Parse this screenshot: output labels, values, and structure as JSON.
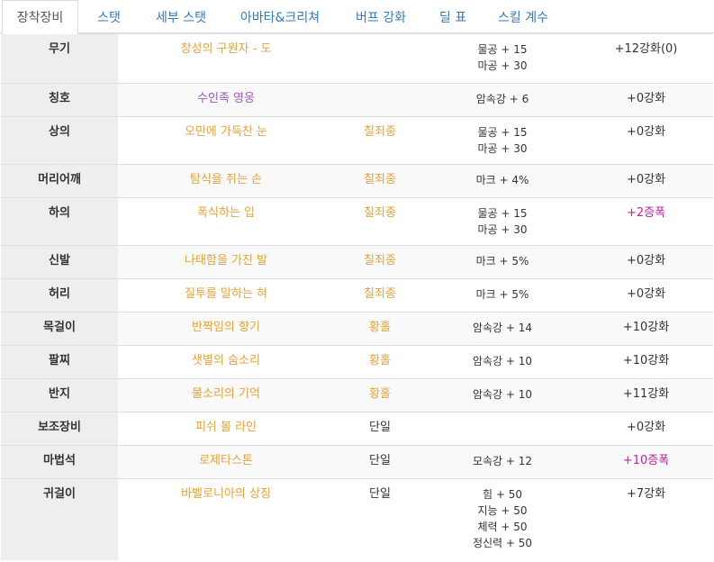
{
  "tabs": [
    {
      "label": "장착장비",
      "active": true
    },
    {
      "label": "스탯",
      "active": false
    },
    {
      "label": "세부 스탯",
      "active": false
    },
    {
      "label": "아바타&크리쳐",
      "active": false
    },
    {
      "label": "버프 강화",
      "active": false
    },
    {
      "label": "딜 표",
      "active": false
    },
    {
      "label": "스킬 계수",
      "active": false
    }
  ],
  "rows": [
    {
      "slot": "무기",
      "name": "창성의 구원자 - 도",
      "set": "",
      "stats": [
        "물공 + 15",
        "마공 + 30"
      ],
      "enh": "+12강화(0)"
    },
    {
      "slot": "칭호",
      "name": "수인족 영웅",
      "set": "",
      "stats": [
        "암속강 + 6"
      ],
      "enh": "+0강화"
    },
    {
      "slot": "상의",
      "name": "오만에 가득찬 눈",
      "set": "칠죄종",
      "stats": [
        "물공 + 15",
        "마공 + 30"
      ],
      "enh": "+0강화"
    },
    {
      "slot": "머리어깨",
      "name": "탐식을 쥐는 손",
      "set": "칠죄종",
      "stats": [
        "마크 + 4%"
      ],
      "enh": "+0강화"
    },
    {
      "slot": "하의",
      "name": "폭식하는 입",
      "set": "칠죄종",
      "stats": [
        "물공 + 15",
        "마공 + 30"
      ],
      "enh": "+2증폭"
    },
    {
      "slot": "신발",
      "name": "나태함을 가진 발",
      "set": "칠죄종",
      "stats": [
        "마크 + 5%"
      ],
      "enh": "+0강화"
    },
    {
      "slot": "허리",
      "name": "질투를 말하는 혀",
      "set": "칠죄종",
      "stats": [
        "마크 + 5%"
      ],
      "enh": "+0강화"
    },
    {
      "slot": "목걸이",
      "name": "반짝임의 향기",
      "set": "황홀",
      "stats": [
        "암속강 + 14"
      ],
      "enh": "+10강화"
    },
    {
      "slot": "팔찌",
      "name": "샛별의 숨소리",
      "set": "황홀",
      "stats": [
        "암속강 + 10"
      ],
      "enh": "+10강화"
    },
    {
      "slot": "반지",
      "name": "물소리의 기억",
      "set": "황홀",
      "stats": [
        "암속강 + 10"
      ],
      "enh": "+11강화"
    },
    {
      "slot": "보조장비",
      "name": "피쉬 볼 라인",
      "set": "단일",
      "stats": [],
      "enh": "+0강화"
    },
    {
      "slot": "마법석",
      "name": "로제타스톤",
      "set": "단일",
      "stats": [
        "모속강 + 12"
      ],
      "enh": "+10증폭"
    },
    {
      "slot": "귀걸이",
      "name": "바벨로니아의 상징",
      "set": "단일",
      "stats": [
        "힘 + 50",
        "지능 + 50",
        "체력 + 50",
        "정신력 + 50"
      ],
      "enh": "+7강화"
    }
  ],
  "colors": {
    "item_name": "#e0a23b",
    "title_name": "#9b59b6",
    "amplify": "#c020a0",
    "tab_link": "#337ab7",
    "slot_bg": "#eeeeee"
  }
}
